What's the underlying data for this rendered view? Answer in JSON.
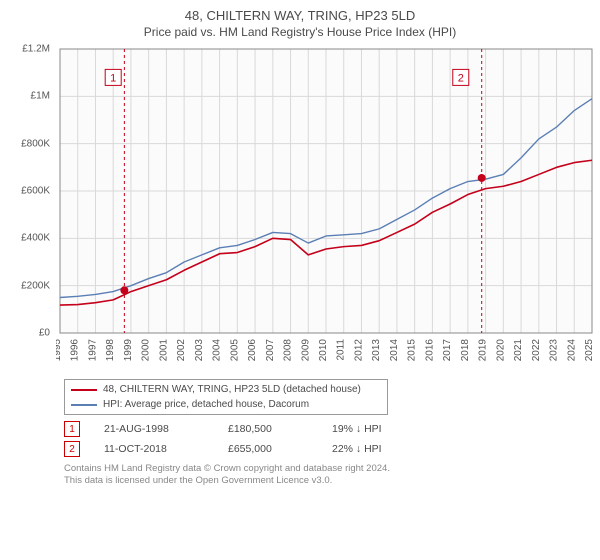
{
  "title": "48, CHILTERN WAY, TRING, HP23 5LD",
  "subtitle": "Price paid vs. HM Land Registry's House Price Index (HPI)",
  "chart": {
    "type": "line",
    "background_color": "#ffffff",
    "plot_bg": "#fbfbfb",
    "grid_color": "#d9d9d9",
    "axis_color": "#888888",
    "x_years": [
      1995,
      1996,
      1997,
      1998,
      1999,
      2000,
      2001,
      2002,
      2003,
      2004,
      2005,
      2006,
      2007,
      2008,
      2009,
      2010,
      2011,
      2012,
      2013,
      2014,
      2015,
      2016,
      2017,
      2018,
      2019,
      2020,
      2021,
      2022,
      2023,
      2024,
      2025
    ],
    "ylim": [
      0,
      1200000
    ],
    "ytick_step": 200000,
    "yticks": [
      "£0",
      "£200K",
      "£400K",
      "£600K",
      "£800K",
      "£1M",
      "£1.2M"
    ],
    "series": [
      {
        "name": "hpi",
        "color": "#5b7fb5",
        "width": 1.4,
        "values": [
          150,
          155,
          163,
          175,
          200,
          230,
          255,
          300,
          330,
          360,
          370,
          395,
          425,
          420,
          380,
          410,
          415,
          420,
          440,
          480,
          520,
          570,
          610,
          640,
          650,
          670,
          740,
          820,
          870,
          940,
          990
        ]
      },
      {
        "name": "price_paid",
        "color": "#c4001a",
        "width": 1.6,
        "values": [
          118,
          120,
          128,
          140,
          175,
          200,
          225,
          265,
          300,
          335,
          340,
          365,
          400,
          395,
          330,
          355,
          365,
          370,
          390,
          425,
          460,
          510,
          545,
          585,
          610,
          620,
          640,
          670,
          700,
          720,
          730
        ]
      }
    ],
    "markers": [
      {
        "idx": "1",
        "year": 1998.63,
        "value": 180500,
        "color": "#c4001a",
        "box_x": 1998.0,
        "box_y": 1080000
      },
      {
        "idx": "2",
        "year": 2018.78,
        "value": 655000,
        "color": "#c4001a",
        "box_x": 2017.6,
        "box_y": 1080000
      }
    ]
  },
  "legend": [
    {
      "color": "#c4001a",
      "label": "48, CHILTERN WAY, TRING, HP23 5LD (detached house)"
    },
    {
      "color": "#5b7fb5",
      "label": "HPI: Average price, detached house, Dacorum"
    }
  ],
  "transactions": [
    {
      "idx": "1",
      "date": "21-AUG-1998",
      "price": "£180,500",
      "delta": "19% ↓ HPI"
    },
    {
      "idx": "2",
      "date": "11-OCT-2018",
      "price": "£655,000",
      "delta": "22% ↓ HPI"
    }
  ],
  "footer_l1": "Contains HM Land Registry data © Crown copyright and database right 2024.",
  "footer_l2": "This data is licensed under the Open Government Licence v3.0."
}
